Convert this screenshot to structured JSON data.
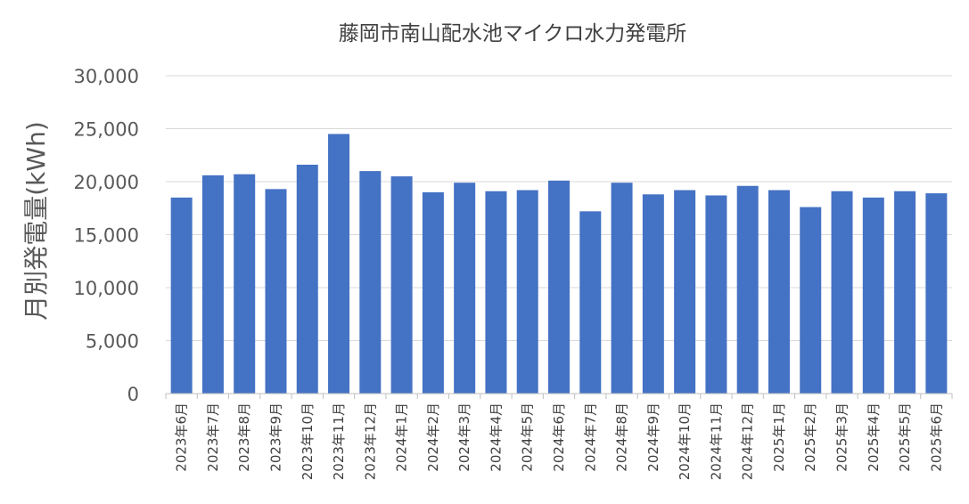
{
  "chart_data": {
    "type": "bar",
    "title": "藤岡市南山配水池マイクロ水力発電所",
    "ylabel": "月別発電量(kWh)",
    "xlabel": "",
    "ylim": [
      0,
      30000
    ],
    "yticks": [
      0,
      5000,
      10000,
      15000,
      20000,
      25000,
      30000
    ],
    "ytick_labels": [
      "0",
      "5,000",
      "10,000",
      "15,000",
      "20,000",
      "25,000",
      "30,000"
    ],
    "grid": true,
    "legend": "none",
    "bar_color": "#4472c4",
    "categories": [
      "2023年6月",
      "2023年7月",
      "2023年8月",
      "2023年9月",
      "2023年10月",
      "2023年11月",
      "2023年12月",
      "2024年1月",
      "2024年2月",
      "2024年3月",
      "2024年4月",
      "2024年5月",
      "2024年6月",
      "2024年7月",
      "2024年8月",
      "2024年9月",
      "2024年10月",
      "2024年11月",
      "2024年12月",
      "2025年1月",
      "2025年2月",
      "2025年3月",
      "2025年4月",
      "2025年5月",
      "2025年6月"
    ],
    "values": [
      18500,
      20600,
      20700,
      19300,
      21600,
      24500,
      21000,
      20500,
      19000,
      19900,
      19100,
      19200,
      20100,
      17200,
      19900,
      18800,
      19200,
      18700,
      19600,
      19200,
      17600,
      19100,
      18500,
      19100,
      18900
    ]
  }
}
